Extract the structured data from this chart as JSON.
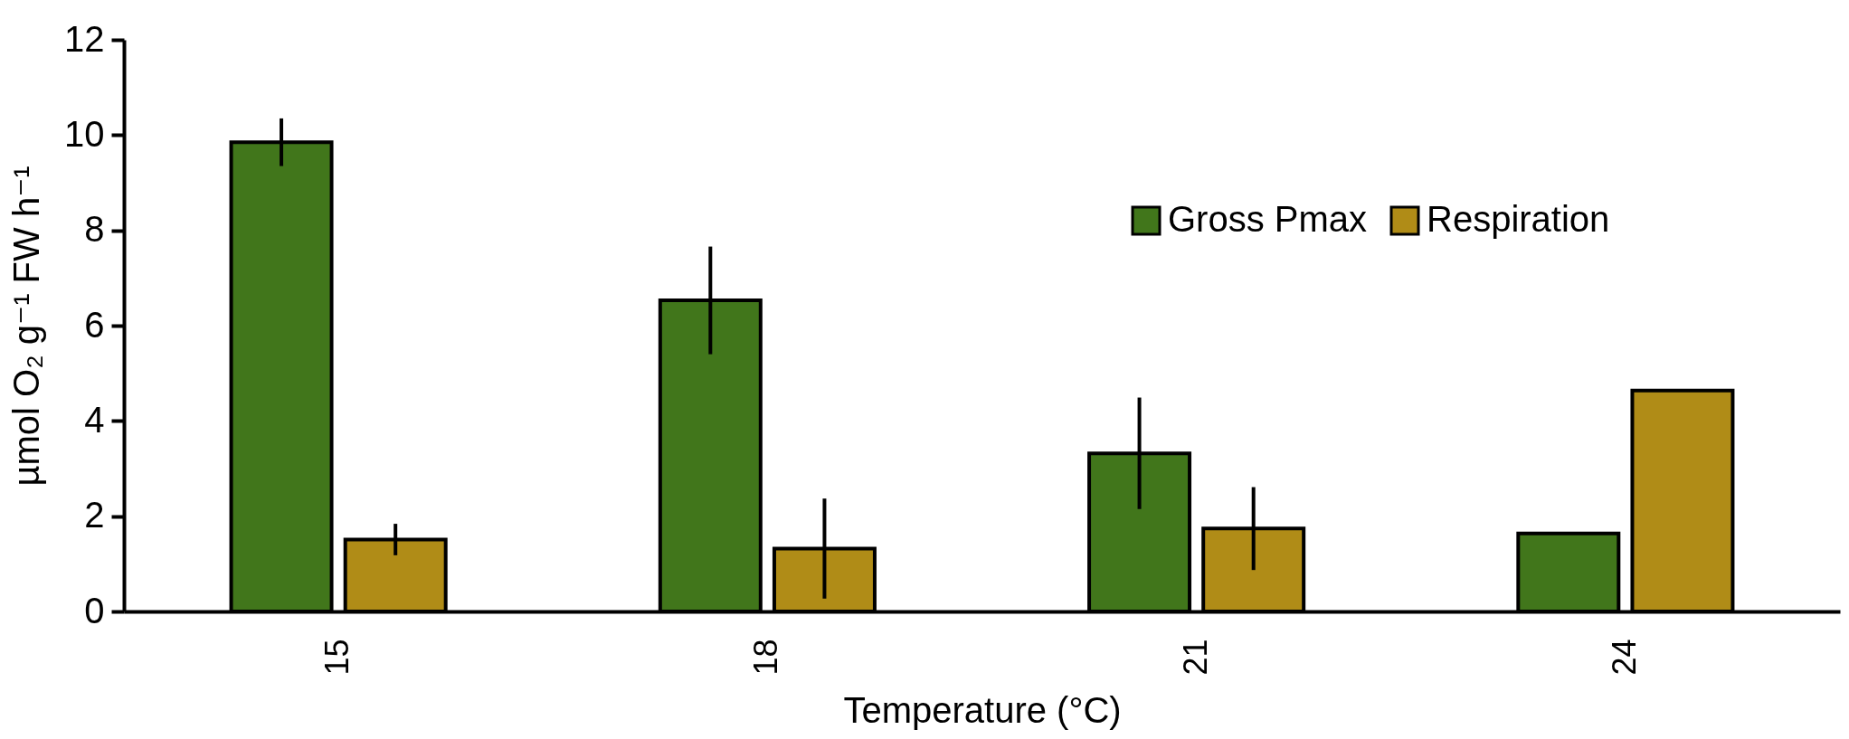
{
  "chart_data": {
    "type": "bar",
    "xlabel": "Temperature (°C)",
    "ylabel": "µmol O₂ g⁻¹ FW h⁻¹",
    "categories": [
      "15",
      "18",
      "21",
      "24"
    ],
    "series": [
      {
        "name": "Gross Pmax",
        "color": "#41761b",
        "values": [
          9.85,
          6.53,
          3.32,
          1.64
        ],
        "errors": [
          0.5,
          1.13,
          1.17,
          null
        ]
      },
      {
        "name": "Respiration",
        "color": "#b08c17",
        "values": [
          1.51,
          1.32,
          1.74,
          4.64
        ],
        "errors": [
          0.33,
          1.05,
          0.87,
          null
        ]
      }
    ],
    "ylim": [
      0,
      12
    ],
    "yticks": [
      0,
      2,
      4,
      6,
      8,
      10,
      12
    ],
    "grid": false,
    "legend": "top right"
  }
}
